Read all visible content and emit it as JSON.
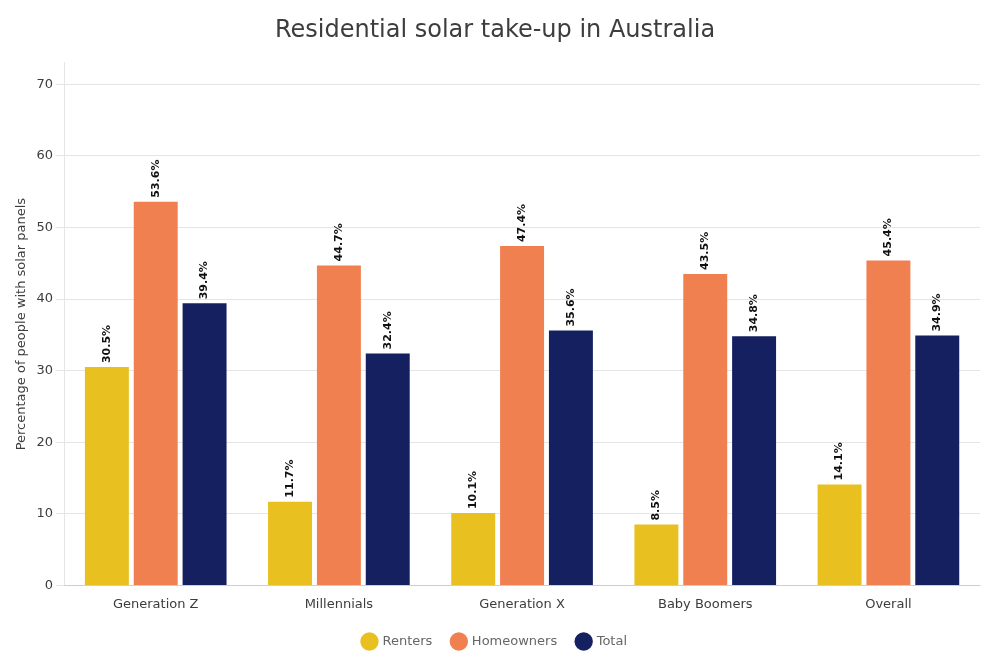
{
  "chart_data": {
    "type": "bar",
    "title": "Residential solar take-up in Australia",
    "categories": [
      "Generation Z",
      "Millennials",
      "Generation X",
      "Baby Boomers",
      "Overall"
    ],
    "series": [
      {
        "name": "Renters",
        "color": "#E8C020",
        "values": [
          30.5,
          11.7,
          10.1,
          8.5,
          14.1
        ],
        "value_labels": [
          "30.5%",
          "11.7%",
          "10.1%",
          "8.5%",
          "14.1%"
        ]
      },
      {
        "name": "Homeowners",
        "color": "#F08050",
        "values": [
          53.6,
          44.7,
          47.4,
          43.5,
          45.4
        ],
        "value_labels": [
          "53.6%",
          "44.7%",
          "47.4%",
          "43.5%",
          "45.4%"
        ]
      },
      {
        "name": "Total",
        "color": "#152060",
        "values": [
          39.4,
          32.4,
          35.6,
          34.8,
          34.9
        ],
        "value_labels": [
          "39.4%",
          "32.4%",
          "35.6%",
          "34.8%",
          "34.9%"
        ]
      }
    ],
    "ylabel": "Percentage of people with solar panels",
    "ylim": [
      0,
      73
    ],
    "yticks": [
      0,
      10,
      20,
      30,
      40,
      50,
      60,
      70
    ],
    "grid": true,
    "legend": "bottom",
    "data_labels": true
  }
}
